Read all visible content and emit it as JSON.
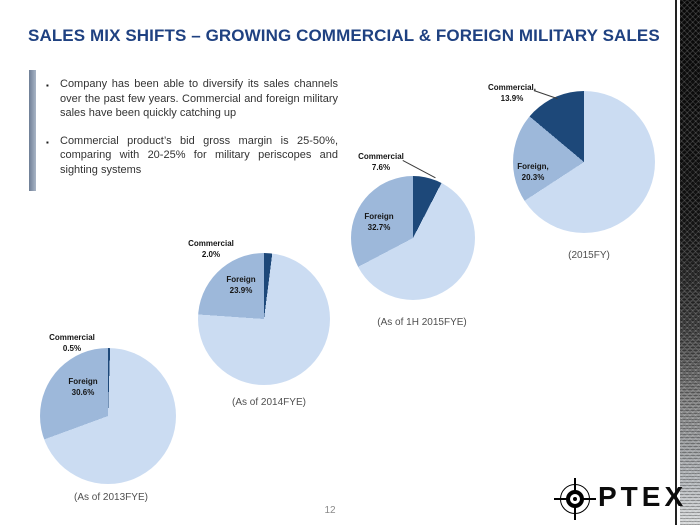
{
  "slide": {
    "title": "SALES MIX SHIFTS – GROWING COMMERCIAL & FOREIGN MILITARY SALES",
    "page_number": "12"
  },
  "bullets": {
    "marker": "▪",
    "items": [
      "Company has been able to diversify its sales channels over the past few years. Commercial and foreign military sales have been quickly catching up",
      "Commercial product’s bid gross margin is 25-50%, comparing with 20-25% for military periscopes and sighting systems"
    ]
  },
  "colors": {
    "title_blue": "#1f4181",
    "commercial_dark_blue": "#1d4879",
    "foreign_medium_blue": "#9db8da",
    "unlabeled_light_blue": "#cbdcf2"
  },
  "logo": {
    "brand": "OPTEX",
    "wordmark": "PTEX",
    "icon": "crosshair-reticle"
  },
  "chart_data": [
    {
      "type": "pie",
      "caption": "(As of 2013FYE)",
      "legend_position": "none",
      "segments": [
        {
          "label": "Commercial",
          "value": 0.5,
          "color": "#1d4879"
        },
        {
          "label": "",
          "value": 68.9,
          "color": "#cbdcf2"
        },
        {
          "label": "Foreign",
          "value": 30.6,
          "color": "#9db8da"
        }
      ],
      "callouts": {
        "commercial": {
          "line1": "Commercial",
          "line2": "0.5%"
        },
        "foreign": {
          "line1": "Foreign",
          "line2": "30.6%"
        }
      }
    },
    {
      "type": "pie",
      "caption": "(As of 2014FYE)",
      "legend_position": "none",
      "segments": [
        {
          "label": "Commercial",
          "value": 2.0,
          "color": "#1d4879"
        },
        {
          "label": "",
          "value": 74.1,
          "color": "#cbdcf2"
        },
        {
          "label": "Foreign",
          "value": 23.9,
          "color": "#9db8da"
        }
      ],
      "callouts": {
        "commercial": {
          "line1": "Commercial",
          "line2": "2.0%"
        },
        "foreign": {
          "line1": "Foreign",
          "line2": "23.9%"
        }
      }
    },
    {
      "type": "pie",
      "caption": "(As of 1H 2015FYE)",
      "legend_position": "none",
      "segments": [
        {
          "label": "Commercial",
          "value": 7.6,
          "color": "#1d4879"
        },
        {
          "label": "",
          "value": 59.7,
          "color": "#cbdcf2"
        },
        {
          "label": "Foreign",
          "value": 32.7,
          "color": "#9db8da"
        }
      ],
      "callouts": {
        "commercial": {
          "line1": "Commercial",
          "line2": "7.6%"
        },
        "foreign": {
          "line1": "Foreign",
          "line2": "32.7%"
        }
      }
    },
    {
      "type": "pie",
      "caption": "(2015FY)",
      "legend_position": "none",
      "segments": [
        {
          "label": "",
          "value": 65.8,
          "color": "#cbdcf2"
        },
        {
          "label": "Foreign",
          "value": 20.3,
          "color": "#9db8da"
        },
        {
          "label": "Commercial",
          "value": 13.9,
          "color": "#1d4879"
        }
      ],
      "callouts": {
        "commercial": {
          "line1": "Commercial,",
          "line2": "13.9%"
        },
        "foreign": {
          "line1": "Foreign,",
          "line2": "20.3%"
        }
      }
    }
  ]
}
